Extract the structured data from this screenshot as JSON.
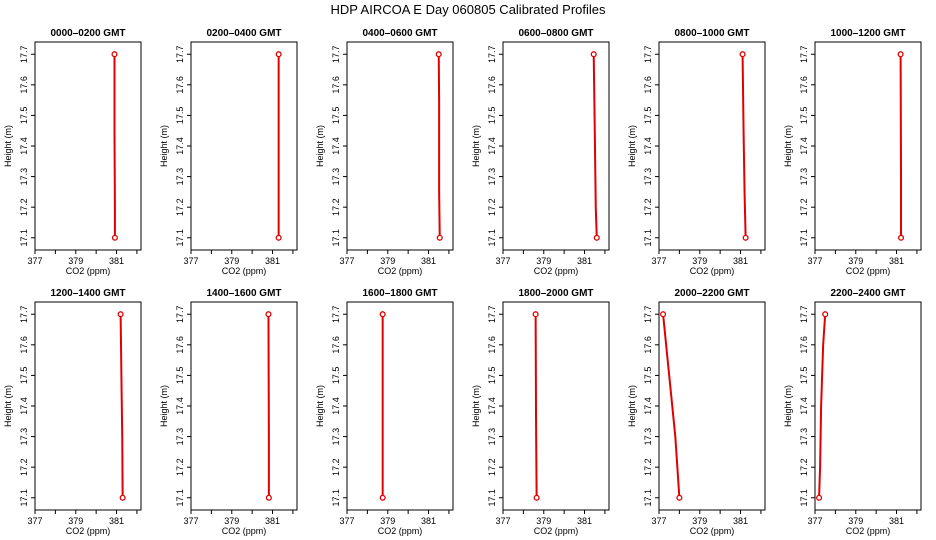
{
  "page": {
    "title": "HDP  AIRCOA E  Day 060805  Calibrated Profiles"
  },
  "chart_data": [
    {
      "type": "line",
      "title": "0000–0200 GMT",
      "xlabel": "CO2 (ppm)",
      "ylabel": "Height (m)",
      "xlim": [
        377,
        382.2
      ],
      "ylim": [
        17.06,
        17.74
      ],
      "xticks": [
        377,
        379,
        381
      ],
      "yticks": [
        17.1,
        17.2,
        17.3,
        17.4,
        17.5,
        17.6,
        17.7
      ],
      "grid": false,
      "series": [
        {
          "x": [
            380.9,
            380.9,
            380.92,
            380.92
          ],
          "y": [
            17.7,
            17.44,
            17.2,
            17.1
          ]
        }
      ]
    },
    {
      "type": "line",
      "title": "0200–0400 GMT",
      "xlabel": "CO2 (ppm)",
      "ylabel": "Height (m)",
      "xlim": [
        377,
        382.2
      ],
      "ylim": [
        17.06,
        17.74
      ],
      "xticks": [
        377,
        379,
        381
      ],
      "yticks": [
        17.1,
        17.2,
        17.3,
        17.4,
        17.5,
        17.6,
        17.7
      ],
      "grid": false,
      "series": [
        {
          "x": [
            381.3,
            381.3,
            381.3
          ],
          "y": [
            17.7,
            17.4,
            17.1
          ]
        }
      ]
    },
    {
      "type": "line",
      "title": "0400–0600 GMT",
      "xlabel": "CO2 (ppm)",
      "ylabel": "Height (m)",
      "xlim": [
        377,
        382.2
      ],
      "ylim": [
        17.06,
        17.74
      ],
      "xticks": [
        377,
        379,
        381
      ],
      "yticks": [
        17.1,
        17.2,
        17.3,
        17.4,
        17.5,
        17.6,
        17.7
      ],
      "grid": false,
      "series": [
        {
          "x": [
            381.5,
            381.52,
            381.52,
            381.55
          ],
          "y": [
            17.7,
            17.54,
            17.25,
            17.1
          ]
        }
      ]
    },
    {
      "type": "line",
      "title": "0600–0800 GMT",
      "xlabel": "CO2 (ppm)",
      "ylabel": "Height (m)",
      "xlim": [
        377,
        382.2
      ],
      "ylim": [
        17.06,
        17.74
      ],
      "xticks": [
        377,
        379,
        381
      ],
      "yticks": [
        17.1,
        17.2,
        17.3,
        17.4,
        17.5,
        17.6,
        17.7
      ],
      "grid": false,
      "series": [
        {
          "x": [
            381.45,
            381.5,
            381.55,
            381.6
          ],
          "y": [
            17.7,
            17.46,
            17.2,
            17.1
          ]
        }
      ]
    },
    {
      "type": "line",
      "title": "0800–1000 GMT",
      "xlabel": "CO2 (ppm)",
      "ylabel": "Height (m)",
      "xlim": [
        377,
        382.2
      ],
      "ylim": [
        17.06,
        17.74
      ],
      "xticks": [
        377,
        379,
        381
      ],
      "yticks": [
        17.1,
        17.2,
        17.3,
        17.4,
        17.5,
        17.6,
        17.7
      ],
      "grid": false,
      "series": [
        {
          "x": [
            381.1,
            381.15,
            381.2,
            381.25
          ],
          "y": [
            17.7,
            17.44,
            17.24,
            17.1
          ]
        }
      ]
    },
    {
      "type": "line",
      "title": "1000–1200 GMT",
      "xlabel": "CO2 (ppm)",
      "ylabel": "Height (m)",
      "xlim": [
        377,
        382.2
      ],
      "ylim": [
        17.06,
        17.74
      ],
      "xticks": [
        377,
        379,
        381
      ],
      "yticks": [
        17.1,
        17.2,
        17.3,
        17.4,
        17.5,
        17.6,
        17.7
      ],
      "grid": false,
      "series": [
        {
          "x": [
            381.2,
            381.22,
            381.22
          ],
          "y": [
            17.7,
            17.3,
            17.1
          ]
        }
      ]
    },
    {
      "type": "line",
      "title": "1200–1400 GMT",
      "xlabel": "CO2 (ppm)",
      "ylabel": "Height (m)",
      "xlim": [
        377,
        382.2
      ],
      "ylim": [
        17.06,
        17.74
      ],
      "xticks": [
        377,
        379,
        381
      ],
      "yticks": [
        17.1,
        17.2,
        17.3,
        17.4,
        17.5,
        17.6,
        17.7
      ],
      "grid": false,
      "series": [
        {
          "x": [
            381.2,
            381.25,
            381.28,
            381.3
          ],
          "y": [
            17.7,
            17.44,
            17.3,
            17.1
          ]
        }
      ]
    },
    {
      "type": "line",
      "title": "1400–1600 GMT",
      "xlabel": "CO2 (ppm)",
      "ylabel": "Height (m)",
      "xlim": [
        377,
        382.2
      ],
      "ylim": [
        17.06,
        17.74
      ],
      "xticks": [
        377,
        379,
        381
      ],
      "yticks": [
        17.1,
        17.2,
        17.3,
        17.4,
        17.5,
        17.6,
        17.7
      ],
      "grid": false,
      "series": [
        {
          "x": [
            380.8,
            380.82,
            380.82
          ],
          "y": [
            17.7,
            17.3,
            17.1
          ]
        }
      ]
    },
    {
      "type": "line",
      "title": "1600–1800 GMT",
      "xlabel": "CO2 (ppm)",
      "ylabel": "Height (m)",
      "xlim": [
        377,
        382.2
      ],
      "ylim": [
        17.06,
        17.74
      ],
      "xticks": [
        377,
        379,
        381
      ],
      "yticks": [
        17.1,
        17.2,
        17.3,
        17.4,
        17.5,
        17.6,
        17.7
      ],
      "grid": false,
      "series": [
        {
          "x": [
            378.75,
            378.75
          ],
          "y": [
            17.7,
            17.1
          ]
        }
      ]
    },
    {
      "type": "line",
      "title": "1800–2000 GMT",
      "xlabel": "CO2 (ppm)",
      "ylabel": "Height (m)",
      "xlim": [
        377,
        382.2
      ],
      "ylim": [
        17.06,
        17.74
      ],
      "xticks": [
        377,
        379,
        381
      ],
      "yticks": [
        17.1,
        17.2,
        17.3,
        17.4,
        17.5,
        17.6,
        17.7
      ],
      "grid": false,
      "series": [
        {
          "x": [
            378.6,
            378.62,
            378.65
          ],
          "y": [
            17.7,
            17.36,
            17.1
          ]
        }
      ]
    },
    {
      "type": "line",
      "title": "2000–2200 GMT",
      "xlabel": "CO2 (ppm)",
      "ylabel": "Height (m)",
      "xlim": [
        377,
        382.2
      ],
      "ylim": [
        17.06,
        17.74
      ],
      "xticks": [
        377,
        379,
        381
      ],
      "yticks": [
        17.1,
        17.2,
        17.3,
        17.4,
        17.5,
        17.6,
        17.7
      ],
      "grid": false,
      "series": [
        {
          "x": [
            377.2,
            377.8,
            378
          ],
          "y": [
            17.7,
            17.3,
            17.1
          ]
        }
      ]
    },
    {
      "type": "line",
      "title": "2200–2400 GMT",
      "xlabel": "CO2 (ppm)",
      "ylabel": "Height (m)",
      "xlim": [
        377,
        382.2
      ],
      "ylim": [
        17.06,
        17.74
      ],
      "xticks": [
        377,
        379,
        381
      ],
      "yticks": [
        17.1,
        17.2,
        17.3,
        17.4,
        17.5,
        17.6,
        17.7
      ],
      "grid": false,
      "series": [
        {
          "x": [
            377.5,
            377.4,
            377.3,
            377.25,
            377.2
          ],
          "y": [
            17.7,
            17.6,
            17.4,
            17.2,
            17.1
          ]
        }
      ]
    }
  ]
}
